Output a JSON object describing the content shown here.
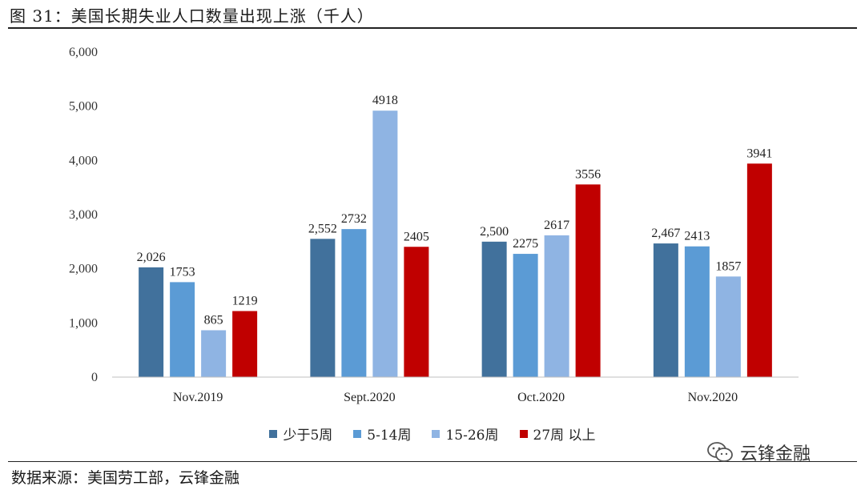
{
  "header": {
    "title": "图 31：美国长期失业人口数量出现上涨（千人）"
  },
  "footer": {
    "source": "数据来源：美国劳工部，云锋金融",
    "watermark": "云锋金融"
  },
  "chart_data": {
    "type": "bar",
    "categories": [
      "Nov.2019",
      "Sept.2020",
      "Oct.2020",
      "Nov.2020"
    ],
    "series": [
      {
        "name": "少于5周",
        "color": "#41719c",
        "values": [
          2026,
          2552,
          2500,
          2467
        ],
        "labels": [
          "2,026",
          "2,552",
          "2,500",
          "2,467"
        ]
      },
      {
        "name": "5-14周",
        "color": "#5b9bd5",
        "values": [
          1753,
          2732,
          2275,
          2413
        ],
        "labels": [
          "1753",
          "2732",
          "2275",
          "2413"
        ]
      },
      {
        "name": "15-26周",
        "color": "#8fb4e3",
        "values": [
          865,
          4918,
          2617,
          1857
        ],
        "labels": [
          "865",
          "4918",
          "2617",
          "1857"
        ]
      },
      {
        "name": "27周 以上",
        "color": "#c00000",
        "values": [
          1219,
          2405,
          3556,
          3941
        ],
        "labels": [
          "1219",
          "2405",
          "3556",
          "3941"
        ]
      }
    ],
    "ylim": [
      0,
      6000
    ],
    "yticks": [
      "0",
      "1,000",
      "2,000",
      "3,000",
      "4,000",
      "5,000",
      "6,000"
    ],
    "xlabel": "",
    "ylabel": "",
    "grid": false,
    "legend_position": "bottom"
  }
}
